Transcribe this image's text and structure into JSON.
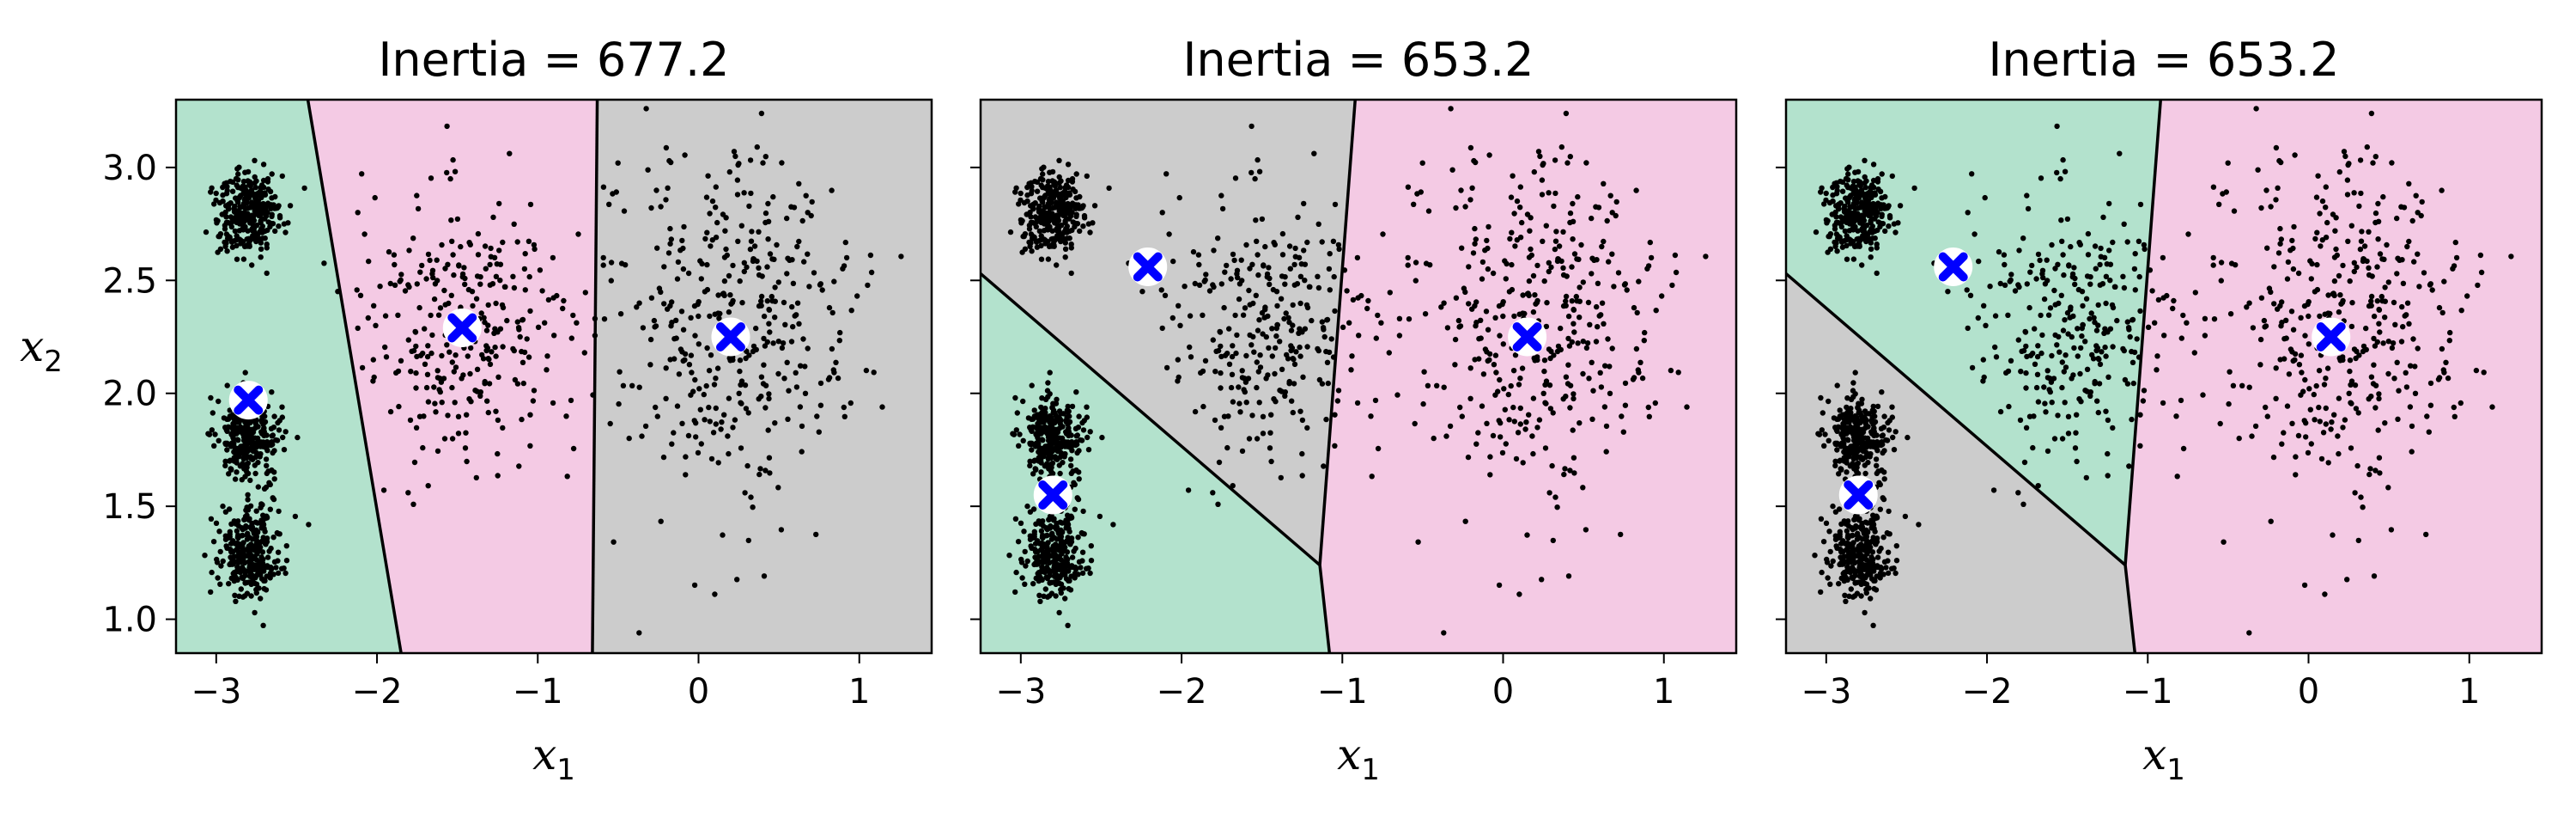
{
  "chart_data": {
    "type": "scatter",
    "xlim": [
      -3.25,
      1.45
    ],
    "ylim": [
      0.85,
      3.3
    ],
    "x_ticks": [
      "−3",
      "−2",
      "−1",
      "0",
      "1"
    ],
    "y_ticks": [
      "1.0",
      "1.5",
      "2.0",
      "2.5",
      "3.0"
    ],
    "x_tick_values": [
      -3,
      -2,
      -1,
      0,
      1
    ],
    "y_tick_values": [
      1.0,
      1.5,
      2.0,
      2.5,
      3.0
    ],
    "xlabel": "x",
    "xlabel_sub": "1",
    "ylabel": "x",
    "ylabel_sub": "2",
    "region_colors": {
      "green": "#b3e2cd",
      "pink": "#f4cae4",
      "gray": "#cccccc"
    },
    "centroid_color": "#0000ff",
    "blob_centers": [
      {
        "x": -2.8,
        "y": 2.8,
        "spread": 0.1,
        "count": 300
      },
      {
        "x": -2.8,
        "y": 1.8,
        "spread": 0.1,
        "count": 300
      },
      {
        "x": -2.8,
        "y": 1.3,
        "spread": 0.1,
        "count": 300
      },
      {
        "x": -1.46,
        "y": 2.3,
        "spread": 0.3,
        "count": 300
      },
      {
        "x": 0.2,
        "y": 2.3,
        "spread": 0.4,
        "count": 400
      }
    ],
    "panels": [
      {
        "title": "Inertia = 677.2",
        "centroids": [
          [
            -2.8,
            1.97
          ],
          [
            -1.47,
            2.29
          ],
          [
            0.2,
            2.25
          ]
        ],
        "regions": [
          {
            "color": "green",
            "polygon": [
              [
                -3.25,
                0.85
              ],
              [
                -1.85,
                0.85
              ],
              [
                -2.43,
                3.3
              ],
              [
                -3.25,
                3.3
              ]
            ]
          },
          {
            "color": "pink",
            "polygon": [
              [
                -1.85,
                0.85
              ],
              [
                -0.66,
                0.85
              ],
              [
                -0.63,
                3.3
              ],
              [
                -2.43,
                3.3
              ]
            ]
          },
          {
            "color": "gray",
            "polygon": [
              [
                -0.66,
                0.85
              ],
              [
                1.45,
                0.85
              ],
              [
                1.45,
                3.3
              ],
              [
                -0.63,
                3.3
              ]
            ]
          }
        ],
        "boundaries": [
          [
            [
              -1.85,
              0.85
            ],
            [
              -2.43,
              3.3
            ]
          ],
          [
            [
              -0.66,
              0.85
            ],
            [
              -0.63,
              3.3
            ]
          ]
        ]
      },
      {
        "title": "Inertia = 653.2",
        "centroids": [
          [
            -2.8,
            1.55
          ],
          [
            -2.21,
            2.56
          ],
          [
            0.15,
            2.25
          ]
        ],
        "regions": [
          {
            "color": "green",
            "polygon": [
              [
                -3.25,
                0.85
              ],
              [
                -1.08,
                0.85
              ],
              [
                -1.14,
                1.24
              ],
              [
                -3.25,
                2.53
              ]
            ]
          },
          {
            "color": "gray",
            "polygon": [
              [
                -3.25,
                2.53
              ],
              [
                -1.14,
                1.24
              ],
              [
                -0.92,
                3.3
              ],
              [
                -3.25,
                3.3
              ]
            ]
          },
          {
            "color": "pink",
            "polygon": [
              [
                -1.08,
                0.85
              ],
              [
                1.45,
                0.85
              ],
              [
                1.45,
                3.3
              ],
              [
                -0.92,
                3.3
              ],
              [
                -1.14,
                1.24
              ]
            ]
          }
        ],
        "boundaries": [
          [
            [
              -3.25,
              2.53
            ],
            [
              -1.14,
              1.24
            ]
          ],
          [
            [
              -1.14,
              1.24
            ],
            [
              -1.08,
              0.85
            ]
          ],
          [
            [
              -1.14,
              1.24
            ],
            [
              -0.92,
              3.3
            ]
          ]
        ]
      },
      {
        "title": "Inertia = 653.2",
        "centroids": [
          [
            -2.8,
            1.55
          ],
          [
            -2.21,
            2.56
          ],
          [
            0.14,
            2.25
          ]
        ],
        "regions": [
          {
            "color": "gray",
            "polygon": [
              [
                -3.25,
                0.85
              ],
              [
                -1.08,
                0.85
              ],
              [
                -1.14,
                1.24
              ],
              [
                -3.25,
                2.53
              ]
            ]
          },
          {
            "color": "green",
            "polygon": [
              [
                -3.25,
                2.53
              ],
              [
                -1.14,
                1.24
              ],
              [
                -0.92,
                3.3
              ],
              [
                -3.25,
                3.3
              ]
            ]
          },
          {
            "color": "pink",
            "polygon": [
              [
                -1.08,
                0.85
              ],
              [
                1.45,
                0.85
              ],
              [
                1.45,
                3.3
              ],
              [
                -0.92,
                3.3
              ],
              [
                -1.14,
                1.24
              ]
            ]
          }
        ],
        "boundaries": [
          [
            [
              -3.25,
              2.53
            ],
            [
              -1.14,
              1.24
            ]
          ],
          [
            [
              -1.14,
              1.24
            ],
            [
              -1.08,
              0.85
            ]
          ],
          [
            [
              -1.14,
              1.24
            ],
            [
              -0.92,
              3.3
            ]
          ]
        ]
      }
    ]
  }
}
